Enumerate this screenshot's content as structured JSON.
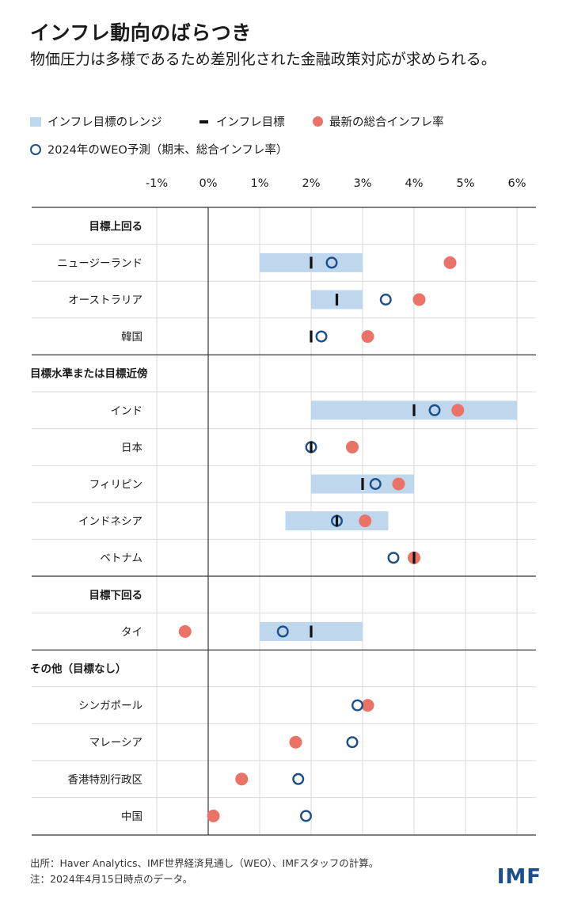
{
  "header": {
    "title": "インフレ動向のばらつき",
    "subtitle": "物価圧力は多様であるため差別化された金融政策対応が求められる。"
  },
  "legend": {
    "range": "インフレ目標のレンジ",
    "target": "インフレ目標",
    "actual": "最新の総合インフレ率",
    "weo": "2024年のWEO予測（期末、総合インフレ率）"
  },
  "colors": {
    "range": "#bed7ec",
    "target": "#111111",
    "actual": "#ea7266",
    "weo": "#1b4f8b",
    "grid": "#d9d9d9",
    "axis": "#333333"
  },
  "chart_data": {
    "type": "dot-range",
    "title": "インフレ動向のばらつき",
    "x_unit": "%",
    "xlim": [
      -1,
      6
    ],
    "x_ticks": [
      -1,
      0,
      1,
      2,
      3,
      4,
      5,
      6
    ],
    "x_tick_labels": [
      "-1%",
      "0%",
      "1%",
      "2%",
      "3%",
      "4%",
      "5%",
      "6%"
    ],
    "groups": [
      {
        "label": "目標上回る",
        "rows": [
          {
            "name": "ニュージーランド",
            "range": [
              1,
              3
            ],
            "target": 2,
            "actual": 4.7,
            "weo": 2.4
          },
          {
            "name": "オーストラリア",
            "range": [
              2,
              3
            ],
            "target": 2.5,
            "actual": 4.1,
            "weo": 3.45
          },
          {
            "name": "韓国",
            "range": null,
            "target": 2,
            "actual": 3.1,
            "weo": 2.2
          }
        ]
      },
      {
        "label": "目標水準または目標近傍",
        "rows": [
          {
            "name": "インド",
            "range": [
              2,
              6
            ],
            "target": 4,
            "actual": 4.85,
            "weo": 4.4
          },
          {
            "name": "日本",
            "range": null,
            "target": 2,
            "actual": 2.8,
            "weo": 2.0
          },
          {
            "name": "フィリピン",
            "range": [
              2,
              4
            ],
            "target": 3,
            "actual": 3.7,
            "weo": 3.25
          },
          {
            "name": "インドネシア",
            "range": [
              1.5,
              3.5
            ],
            "target": 2.5,
            "actual": 3.05,
            "weo": 2.5
          },
          {
            "name": "ベトナム",
            "range": null,
            "target": 4,
            "actual": 4.0,
            "weo": 3.6
          }
        ]
      },
      {
        "label": "目標下回る",
        "rows": [
          {
            "name": "タイ",
            "range": [
              1,
              3
            ],
            "target": 2,
            "actual": -0.45,
            "weo": 1.45
          }
        ]
      },
      {
        "label": "その他（目標なし）",
        "rows": [
          {
            "name": "シンガポール",
            "range": null,
            "target": null,
            "actual": 3.1,
            "weo": 2.9
          },
          {
            "name": "マレーシア",
            "range": null,
            "target": null,
            "actual": 1.7,
            "weo": 2.8
          },
          {
            "name": "香港特別行政区",
            "range": null,
            "target": null,
            "actual": 0.65,
            "weo": 1.75
          },
          {
            "name": "中国",
            "range": null,
            "target": null,
            "actual": 0.1,
            "weo": 1.9
          }
        ]
      }
    ]
  },
  "footer": {
    "source": "出所：Haver Analytics、IMF世界経済見通し（WEO）、IMFスタッフの計算。",
    "note": "注：2024年4月15日時点のデータ。",
    "logo": "IMF"
  }
}
